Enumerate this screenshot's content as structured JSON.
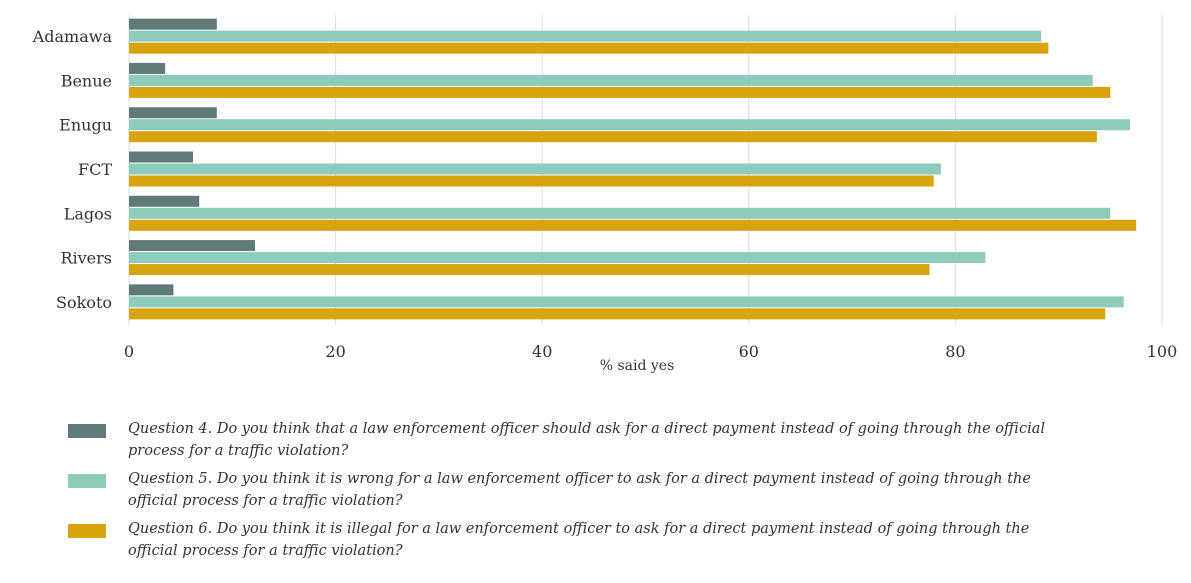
{
  "chart_data": {
    "type": "bar",
    "orientation": "horizontal",
    "categories": [
      "Adamawa",
      "Benue",
      "Enugu",
      "FCT",
      "Lagos",
      "Rivers",
      "Sokoto"
    ],
    "series": [
      {
        "name": "Question 4. Do you think that a law enforcement officer should ask for a direct payment instead of going through the official process for a traffic violation?",
        "color": "#5f7a78",
        "values": [
          8.5,
          3.5,
          8.5,
          6.2,
          6.8,
          12.2,
          4.3
        ]
      },
      {
        "name": "Question 5. Do you think it is wrong for a law enforcement officer to ask for a direct payment instead of going through the official process for a traffic violation?",
        "color": "#8ecbbd",
        "values": [
          88.3,
          93.3,
          96.9,
          78.6,
          95.0,
          82.9,
          96.3
        ]
      },
      {
        "name": "Question 6. Do you think it is illegal for a law enforcement officer to ask for a direct payment instead of going through the official process for a traffic violation?",
        "color": "#d8a40d",
        "values": [
          89.0,
          95.0,
          93.7,
          77.9,
          97.5,
          77.5,
          94.5
        ]
      }
    ],
    "xlabel": "% said yes",
    "xlim": [
      0,
      100
    ],
    "xticks": [
      "0",
      "20",
      "40",
      "60",
      "80",
      "100"
    ],
    "grid": "vertical",
    "legend_position": "bottom"
  }
}
